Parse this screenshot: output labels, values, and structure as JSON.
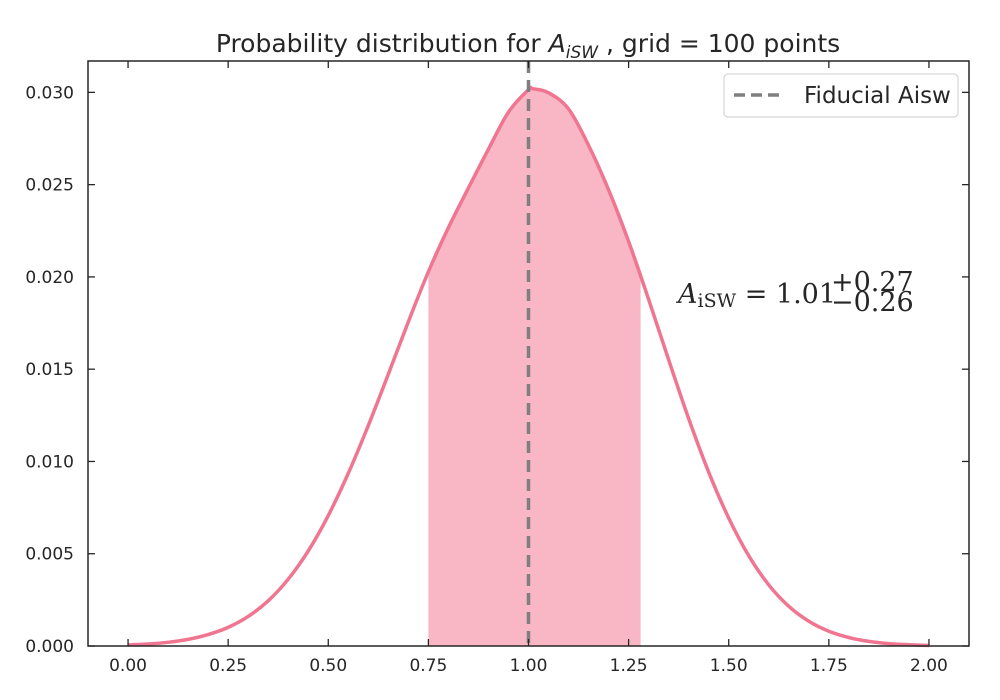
{
  "chart_data": {
    "type": "line",
    "title": {
      "prefix": "Probability distribution for ",
      "symbol": "A",
      "symbol_sub": "iSW",
      "suffix": " , grid = 100 points"
    },
    "xlim": [
      -0.1,
      2.1
    ],
    "ylim": [
      0.0,
      0.0317
    ],
    "x_ticks": [
      "0.00",
      "0.25",
      "0.50",
      "0.75",
      "1.00",
      "1.25",
      "1.50",
      "1.75",
      "2.00"
    ],
    "y_ticks": [
      "0.000",
      "0.005",
      "0.010",
      "0.015",
      "0.020",
      "0.025",
      "0.030"
    ],
    "series": [
      {
        "x": [
          0.0,
          0.05,
          0.1,
          0.15,
          0.2,
          0.25,
          0.3,
          0.35,
          0.4,
          0.45,
          0.5,
          0.55,
          0.6,
          0.65,
          0.7,
          0.75,
          0.8,
          0.85,
          0.9,
          0.95,
          1.0,
          1.01,
          1.05,
          1.1,
          1.15,
          1.2,
          1.25,
          1.3,
          1.35,
          1.4,
          1.45,
          1.5,
          1.55,
          1.6,
          1.65,
          1.7,
          1.75,
          1.8,
          1.85,
          1.9,
          1.95,
          2.0
        ],
        "y": [
          6e-05,
          0.00011,
          0.0002,
          0.00036,
          0.00062,
          0.00101,
          0.0016,
          0.00245,
          0.00362,
          0.00515,
          0.00707,
          0.00936,
          0.01195,
          0.01473,
          0.01757,
          0.02028,
          0.02267,
          0.02482,
          0.02692,
          0.02893,
          0.03015,
          0.0302,
          0.02998,
          0.0291,
          0.02713,
          0.02472,
          0.02192,
          0.01878,
          0.01551,
          0.01232,
          0.00942,
          0.00693,
          0.00489,
          0.00331,
          0.00215,
          0.00134,
          0.0008,
          0.00046,
          0.00025,
          0.00013,
          7e-05,
          3e-05
        ],
        "color": "#f07590"
      }
    ],
    "fill_range": [
      0.75,
      1.28
    ],
    "fill_color": "#f9b7c6",
    "vline": {
      "x": 1.0,
      "color": "#7f7f7f",
      "style": "dashed"
    },
    "legend": {
      "position": "top-right",
      "entries": [
        {
          "label": "Fiducial Aisw",
          "style": "dashed",
          "color": "#7f7f7f"
        }
      ]
    },
    "annotation": {
      "lhs": "A",
      "lhs_sub": "iSW",
      "equals": " = ",
      "value": "1.01",
      "plus": "+0.27",
      "minus": "−0.26"
    },
    "grid": false
  }
}
